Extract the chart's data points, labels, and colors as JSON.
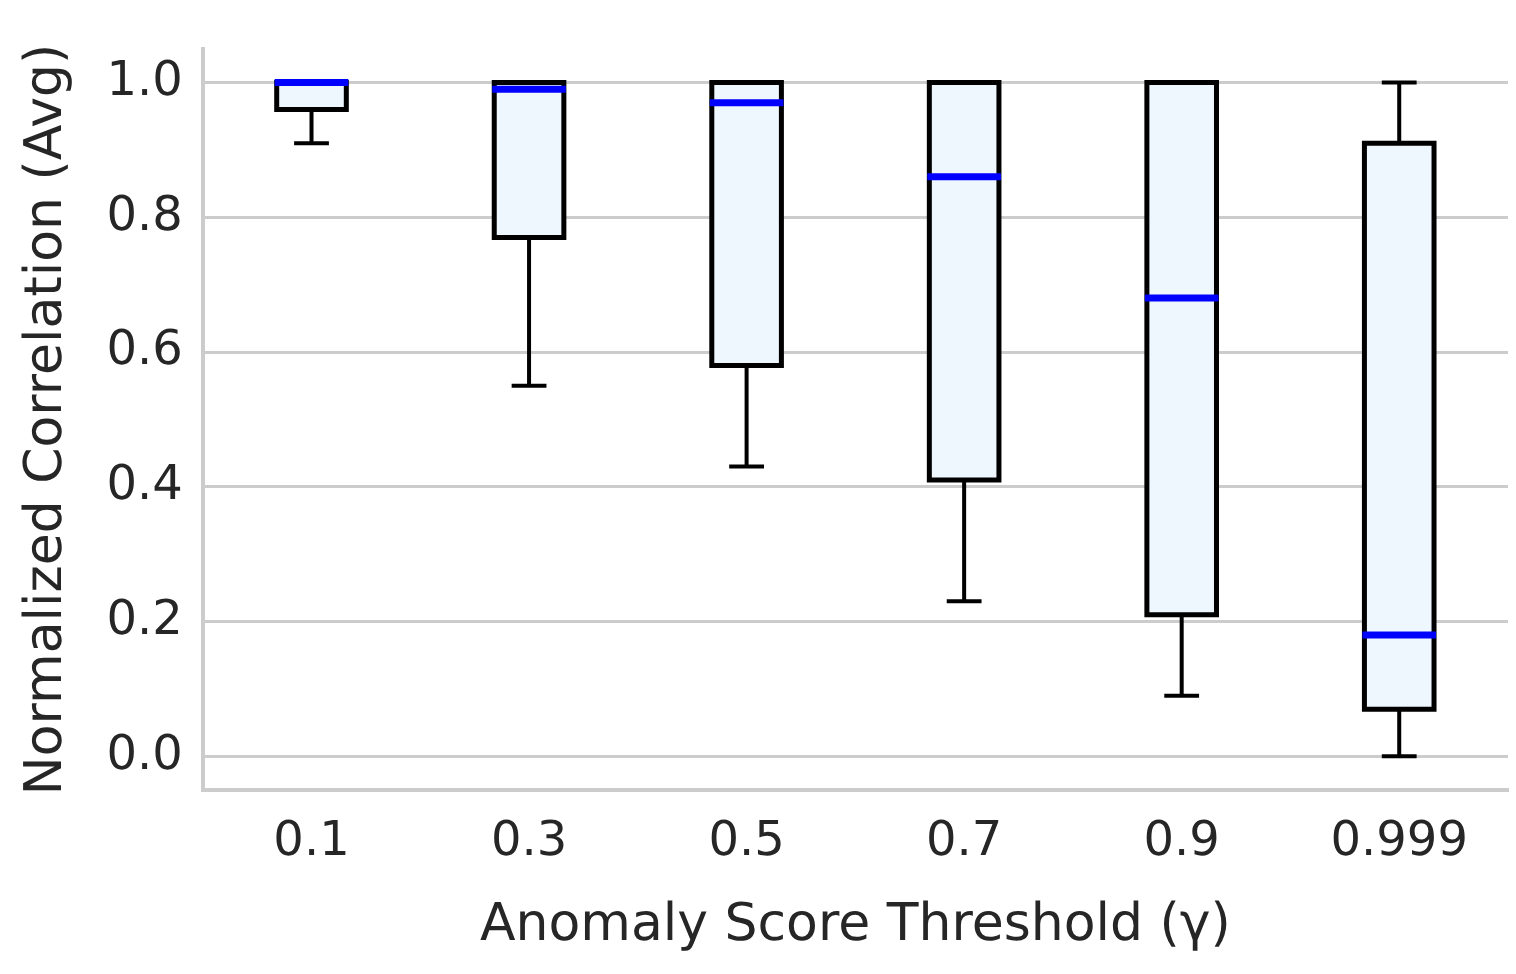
{
  "chart_data": {
    "type": "box",
    "xlabel": "Anomaly Score Threshold (γ)",
    "ylabel": "Normalized Correlation (Avg)",
    "categories": [
      "0.1",
      "0.3",
      "0.5",
      "0.7",
      "0.9",
      "0.999"
    ],
    "series": [
      {
        "color": "#eef6fe",
        "boxes": [
          {
            "low": 0.91,
            "q1": 0.96,
            "median": 1.0,
            "q3": 1.0,
            "high": 1.0
          },
          {
            "low": 0.55,
            "q1": 0.77,
            "median": 0.99,
            "q3": 1.0,
            "high": 1.0
          },
          {
            "low": 0.43,
            "q1": 0.58,
            "median": 0.97,
            "q3": 1.0,
            "high": 1.0
          },
          {
            "low": 0.23,
            "q1": 0.41,
            "median": 0.86,
            "q3": 1.0,
            "high": 1.0
          },
          {
            "low": 0.09,
            "q1": 0.21,
            "median": 0.68,
            "q3": 1.0,
            "high": 1.0
          },
          {
            "low": 0.0,
            "q1": 0.07,
            "median": 0.18,
            "q3": 0.91,
            "high": 1.0
          }
        ]
      }
    ],
    "ylim": [
      -0.05,
      1.05
    ],
    "yticks": [
      {
        "value": 0,
        "label": "0.0"
      },
      {
        "value": 0.2,
        "label": "0.2"
      },
      {
        "value": 0.4,
        "label": "0.4"
      },
      {
        "value": 0.6,
        "label": "0.6"
      },
      {
        "value": 0.8,
        "label": "0.8"
      },
      {
        "value": 1,
        "label": "1.0"
      }
    ],
    "grid": "y",
    "legend": false
  }
}
